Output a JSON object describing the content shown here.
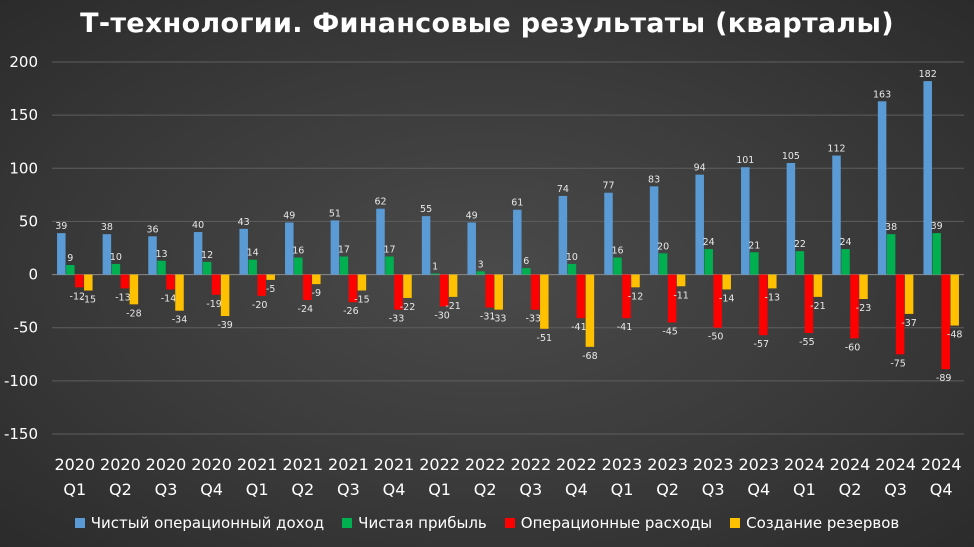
{
  "chart_data": {
    "type": "bar",
    "title": "Т-технологии. Финансовые результаты (кварталы)",
    "categories": [
      [
        "2020",
        "Q1"
      ],
      [
        "2020",
        "Q2"
      ],
      [
        "2020",
        "Q3"
      ],
      [
        "2020",
        "Q4"
      ],
      [
        "2021",
        "Q1"
      ],
      [
        "2021",
        "Q2"
      ],
      [
        "2021",
        "Q3"
      ],
      [
        "2021",
        "Q4"
      ],
      [
        "2022",
        "Q1"
      ],
      [
        "2022",
        "Q2"
      ],
      [
        "2022",
        "Q3"
      ],
      [
        "2022",
        "Q4"
      ],
      [
        "2023",
        "Q1"
      ],
      [
        "2023",
        "Q2"
      ],
      [
        "2023",
        "Q3"
      ],
      [
        "2023",
        "Q4"
      ],
      [
        "2024",
        "Q1"
      ],
      [
        "2024",
        "Q2"
      ],
      [
        "2024",
        "Q3"
      ],
      [
        "2024",
        "Q4"
      ]
    ],
    "series": [
      {
        "name": "Чистый операционный доход",
        "color": "#5b9bd5",
        "values": [
          39,
          38,
          36,
          40,
          43,
          49,
          51,
          62,
          55,
          49,
          61,
          74,
          77,
          83,
          94,
          101,
          105,
          112,
          163,
          182
        ]
      },
      {
        "name": "Чистая прибыль",
        "color": "#00b050",
        "values": [
          9,
          10,
          13,
          12,
          14,
          16,
          17,
          17,
          1,
          3,
          6,
          10,
          16,
          20,
          24,
          21,
          22,
          24,
          38,
          39
        ]
      },
      {
        "name": "Операционные расходы",
        "color": "#ff0000",
        "values": [
          -12,
          -13,
          -14,
          -19,
          -20,
          -24,
          -26,
          -33,
          -30,
          -31,
          -33,
          -41,
          -41,
          -45,
          -50,
          -57,
          -55,
          -60,
          -75,
          -89
        ]
      },
      {
        "name": "Создание резервов",
        "color": "#ffc000",
        "values": [
          -15,
          -28,
          -34,
          -39,
          -5,
          -9,
          -15,
          -22,
          -21,
          -33,
          -51,
          -68,
          -12,
          -11,
          -14,
          -13,
          -21,
          -23,
          -37,
          -48
        ]
      }
    ],
    "ylim": [
      -150,
      200
    ],
    "yticks": [
      -150,
      -100,
      -50,
      0,
      50,
      100,
      150,
      200
    ],
    "grid": true,
    "legend_position": "bottom",
    "data_labels": true
  }
}
